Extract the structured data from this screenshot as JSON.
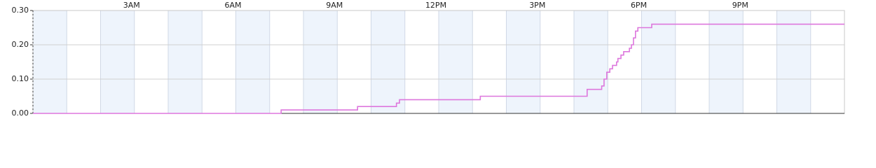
{
  "chart_data": {
    "type": "line",
    "step": true,
    "x": [
      0,
      7.34,
      9.6,
      10.75,
      10.84,
      13.23,
      16.39,
      16.82,
      16.89,
      16.97,
      17.06,
      17.14,
      17.26,
      17.3,
      17.39,
      17.47,
      17.64,
      17.7,
      17.76,
      17.82,
      17.89,
      18.3,
      24
    ],
    "series": [
      {
        "color": "#dd77dd",
        "values": [
          0,
          0.01,
          0.02,
          0.03,
          0.04,
          0.05,
          0.07,
          0.08,
          0.1,
          0.12,
          0.13,
          0.14,
          0.15,
          0.16,
          0.17,
          0.18,
          0.19,
          0.2,
          0.22,
          0.24,
          0.25,
          0.26,
          0.26
        ]
      }
    ],
    "xlim": [
      0,
      24
    ],
    "xticks": [
      {
        "value": 3,
        "label": "3AM"
      },
      {
        "value": 6,
        "label": "6AM"
      },
      {
        "value": 9,
        "label": "9AM"
      },
      {
        "value": 12,
        "label": "12PM"
      },
      {
        "value": 15,
        "label": "3PM"
      },
      {
        "value": 18,
        "label": "6PM"
      },
      {
        "value": 21,
        "label": "9PM"
      }
    ],
    "ylim": [
      0,
      0.3
    ],
    "yticks": [
      {
        "value": 0,
        "label": "0.00"
      },
      {
        "value": 0.1,
        "label": "0.10"
      },
      {
        "value": 0.2,
        "label": "0.20"
      },
      {
        "value": 0.3,
        "label": "0.30"
      }
    ],
    "grid": true
  }
}
